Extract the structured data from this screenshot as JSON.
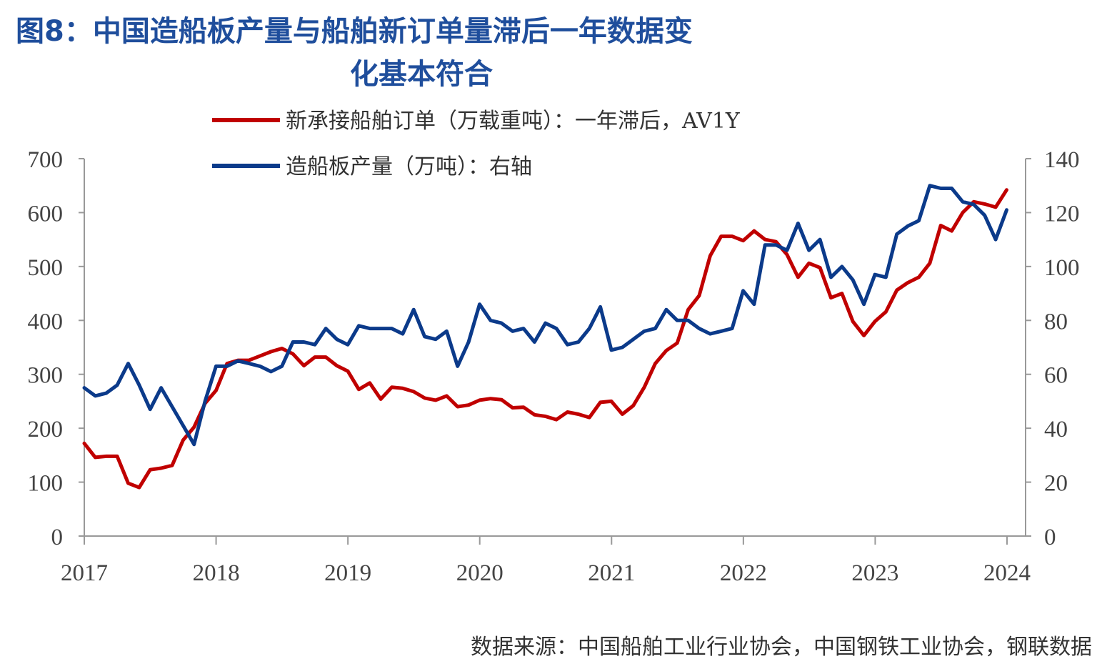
{
  "title": {
    "line1": "图8：中国造船板产量与船舶新订单量滞后一年数据变",
    "line2": "化基本符合"
  },
  "source": "数据来源：中国船舶工业行业协会，中国钢铁工业协会，钢联数据",
  "chart_data": {
    "type": "line",
    "colors": {
      "orders": "#c00000",
      "plate": "#0b3a8a"
    },
    "x_ticks": [
      "2017",
      "2018",
      "2019",
      "2020",
      "2021",
      "2022",
      "2023",
      "2024"
    ],
    "y_left_ticks": [
      "0",
      "100",
      "200",
      "300",
      "400",
      "500",
      "600",
      "700"
    ],
    "y_right_ticks": [
      "0",
      "20",
      "40",
      "60",
      "80",
      "100",
      "120",
      "140"
    ],
    "ylim_left": [
      0,
      700
    ],
    "ylim_right": [
      0,
      140
    ],
    "xlim": [
      2017.0,
      2024.15
    ],
    "series": [
      {
        "name": "新承接船舶订单（万载重吨）：一年滞后，AV1Y",
        "axis": "left",
        "x_start": 2017.0,
        "x_step": 0.0833,
        "values": [
          172,
          146,
          148,
          148,
          98,
          90,
          123,
          126,
          131,
          178,
          202,
          246,
          270,
          320,
          326,
          326,
          334,
          342,
          348,
          338,
          316,
          332,
          332,
          316,
          306,
          272,
          284,
          254,
          276,
          274,
          268,
          256,
          252,
          260,
          240,
          243,
          252,
          255,
          253,
          238,
          239,
          225,
          222,
          216,
          230,
          226,
          220,
          248,
          250,
          226,
          242,
          276,
          320,
          344,
          358,
          420,
          446,
          520,
          556,
          556,
          548,
          566,
          550,
          546,
          522,
          480,
          506,
          498,
          442,
          450,
          398,
          372,
          398,
          416,
          456,
          470,
          480,
          506,
          576,
          566,
          600,
          620,
          616,
          610,
          642
        ]
      },
      {
        "name": "造船板产量（万吨）：右轴",
        "axis": "right",
        "x_start": 2017.0,
        "x_step": 0.0833,
        "values": [
          55,
          52,
          53,
          56,
          64,
          56,
          47,
          55,
          48,
          41,
          34,
          50,
          63,
          63,
          65,
          64,
          63,
          61,
          63,
          72,
          72,
          71,
          77,
          73,
          71,
          78,
          77,
          77,
          77,
          75,
          84,
          74,
          73,
          76,
          63,
          72,
          86,
          80,
          79,
          76,
          77,
          72,
          79,
          77,
          71,
          72,
          77,
          85,
          69,
          70,
          73,
          76,
          77,
          84,
          80,
          80,
          77,
          75,
          76,
          77,
          91,
          86,
          108,
          108,
          106,
          116,
          106,
          110,
          96,
          100,
          95,
          86,
          97,
          96,
          112,
          115,
          117,
          130,
          129,
          129,
          124,
          123,
          119,
          110,
          121
        ]
      }
    ]
  }
}
